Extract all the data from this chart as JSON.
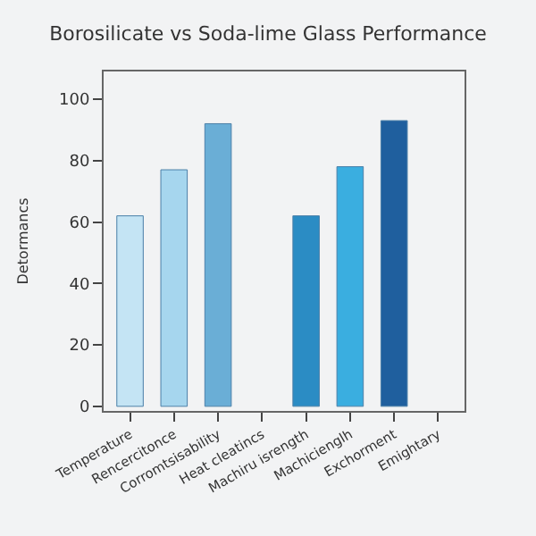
{
  "chart_data": {
    "type": "bar",
    "title": "Borosilicate vs Soda-lime Glass Performance",
    "ylabel": "Detormancs",
    "categories": [
      "Temperature",
      "Rencercitonce",
      "Corromtsisability",
      "Heat cleatincs",
      "Machiru isrength",
      "Machicienglh",
      "Exchorment",
      "Emightary"
    ],
    "values": [
      62,
      77,
      92,
      null,
      62,
      78,
      93,
      null
    ],
    "colors": [
      "#c4e4f4",
      "#a6d6ee",
      "#6aaed6",
      null,
      "#2b8cc4",
      "#3aaee0",
      "#1f5f9e",
      null
    ],
    "ylim": [
      -1.5,
      109
    ],
    "yticks": [
      0,
      20,
      40,
      60,
      80,
      100
    ],
    "grid": false
  }
}
